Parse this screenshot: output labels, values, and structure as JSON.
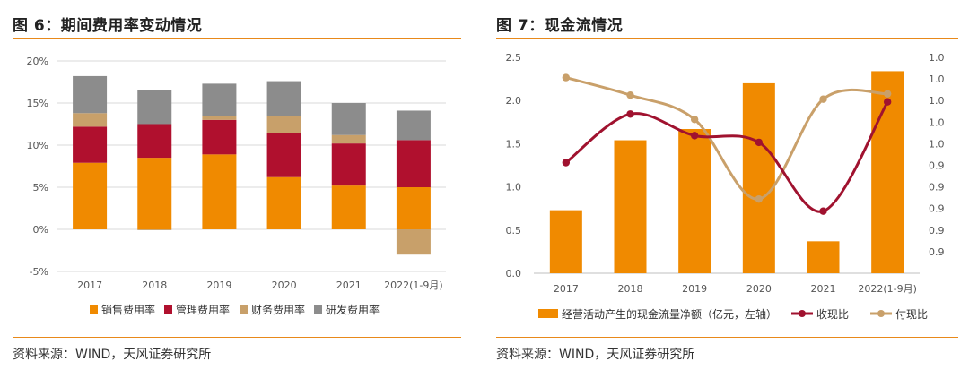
{
  "left_panel": {
    "title": "图 6：期间费用率变动情况",
    "source": "资料来源：WIND，天风证券研究所"
  },
  "right_panel": {
    "title": "图 7：现金流情况",
    "source": "资料来源：WIND，天风证券研究所"
  },
  "chart_data": [
    {
      "type": "bar",
      "stacked": true,
      "title": "图 6：期间费用率变动情况",
      "categories": [
        "2017",
        "2018",
        "2019",
        "2020",
        "2021",
        "2022(1-9月)"
      ],
      "y_ticks": [
        "20%",
        "15%",
        "10%",
        "5%",
        "0%",
        "-5%"
      ],
      "ylim": [
        -5,
        20
      ],
      "series": [
        {
          "name": "销售费用率",
          "color": "#f08a00",
          "values": [
            7.9,
            8.5,
            8.9,
            6.2,
            5.2,
            5.0
          ]
        },
        {
          "name": "管理费用率",
          "color": "#b0102e",
          "values": [
            4.3,
            4.0,
            4.1,
            5.2,
            5.0,
            5.6
          ]
        },
        {
          "name": "财务费用率",
          "color": "#c8a06a",
          "values": [
            1.6,
            -0.1,
            0.5,
            2.1,
            1.0,
            -3.0
          ]
        },
        {
          "name": "研发费用率",
          "color": "#8c8c8c",
          "values": [
            4.4,
            4.0,
            3.8,
            4.1,
            3.8,
            3.5
          ]
        }
      ]
    },
    {
      "type": "bar+line",
      "title": "图 7：现金流情况",
      "categories": [
        "2017",
        "2018",
        "2019",
        "2020",
        "2021",
        "2022(1-9月)"
      ],
      "y_left_ticks": [
        "2.5",
        "2.0",
        "1.5",
        "1.0",
        "0.5",
        "0.0"
      ],
      "y_right_ticks": [
        "1.0",
        "1.0",
        "1.0",
        "1.0",
        "1.0",
        "0.9",
        "0.9",
        "0.9",
        "0.9",
        "0.9"
      ],
      "ylim_left": [
        0,
        2.5
      ],
      "ylim_right": [
        0.88,
        1.04
      ],
      "bar_series": {
        "name": "经营活动产生的现金流量净额（亿元，左轴）",
        "color": "#f08a00",
        "values": [
          0.73,
          1.54,
          1.67,
          2.2,
          0.37,
          2.34
        ]
      },
      "line_series": [
        {
          "name": "收现比",
          "color": "#a0122f",
          "values": [
            0.962,
            0.998,
            0.982,
            0.977,
            0.926,
            1.007
          ]
        },
        {
          "name": "付现比",
          "color": "#c9a06a",
          "values": [
            1.025,
            1.012,
            0.994,
            0.935,
            1.009,
            1.013
          ]
        }
      ]
    }
  ]
}
